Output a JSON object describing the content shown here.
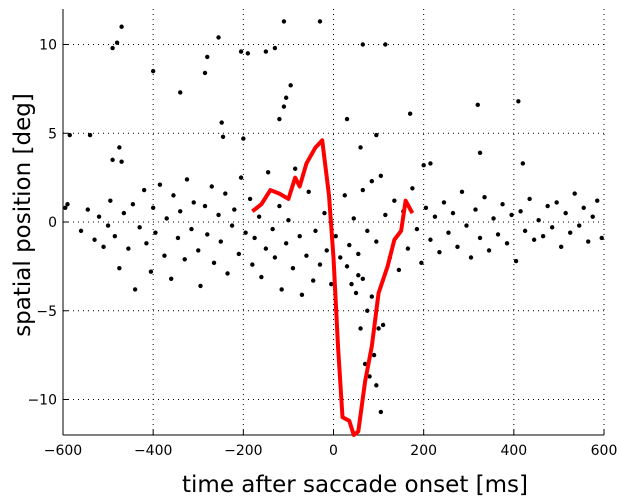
{
  "chart_data": {
    "type": "scatter",
    "xlabel": "time after saccade onset [ms]",
    "ylabel": "spatial position [deg]",
    "xlim": [
      -600,
      600
    ],
    "ylim": [
      -12,
      12
    ],
    "xticks": [
      {
        "value": -600,
        "label": "−600"
      },
      {
        "value": -400,
        "label": "−400"
      },
      {
        "value": -200,
        "label": "−200"
      },
      0,
      200,
      400,
      600
    ],
    "yticks": [
      {
        "value": -10,
        "label": "−10"
      },
      {
        "value": -5,
        "label": "−5"
      },
      0,
      5,
      10
    ],
    "grid": true,
    "scatter": {
      "color": "#000000",
      "x": [
        -470,
        -480,
        -490,
        -400,
        -340,
        -280,
        -285,
        -255,
        -205,
        -190,
        -150,
        -130,
        -110,
        -30,
        -105,
        -95,
        -110,
        -120,
        -248,
        -245,
        -200,
        -585,
        -540,
        -490,
        -475,
        -470,
        30,
        65,
        115,
        95,
        60,
        170,
        320,
        410,
        325,
        420,
        200,
        215,
        -590,
        -595,
        -560,
        -545,
        -530,
        -520,
        -510,
        -500,
        -495,
        -485,
        -475,
        -465,
        -455,
        -445,
        -440,
        -430,
        -420,
        -415,
        -405,
        -400,
        -395,
        -385,
        -375,
        -370,
        -360,
        -355,
        -345,
        -340,
        -330,
        -325,
        -315,
        -310,
        -300,
        -295,
        -285,
        -280,
        -270,
        -265,
        -255,
        -250,
        -240,
        -235,
        -225,
        -220,
        -210,
        -205,
        -195,
        -185,
        -180,
        -175,
        -165,
        -160,
        -150,
        -145,
        -135,
        -130,
        -120,
        -115,
        -105,
        -100,
        -90,
        -85,
        -75,
        -70,
        -60,
        -55,
        -45,
        -40,
        -30,
        -20,
        -15,
        -5,
        5,
        15,
        25,
        35,
        45,
        55,
        65,
        75,
        85,
        95,
        105,
        115,
        125,
        135,
        145,
        155,
        165,
        175,
        185,
        195,
        205,
        215,
        225,
        235,
        245,
        255,
        265,
        275,
        285,
        295,
        305,
        315,
        325,
        335,
        345,
        355,
        365,
        375,
        385,
        395,
        405,
        415,
        425,
        435,
        445,
        455,
        465,
        475,
        485,
        495,
        505,
        515,
        525,
        535,
        545,
        555,
        565,
        575,
        585,
        595,
        50,
        60,
        70,
        80,
        90,
        100,
        75,
        85,
        95,
        105,
        110,
        65,
        40,
        30,
        55
      ],
      "values": [
        11.0,
        10.1,
        9.8,
        8.5,
        7.3,
        9.3,
        8.4,
        10.4,
        9.6,
        9.5,
        9.6,
        9.8,
        11.3,
        11.3,
        7.0,
        7.7,
        6.5,
        5.8,
        5.6,
        4.8,
        4.7,
        4.9,
        4.9,
        3.5,
        4.2,
        3.4,
        5.8,
        10.0,
        10.0,
        4.9,
        4.2,
        6.1,
        6.6,
        6.8,
        3.9,
        3.3,
        3.2,
        3.3,
        1.0,
        0.8,
        -0.5,
        0.7,
        -1.0,
        0.3,
        -1.4,
        -0.2,
        1.2,
        -0.8,
        -2.6,
        0.5,
        -1.5,
        1.0,
        -3.8,
        -0.3,
        1.8,
        -1.2,
        -2.8,
        0.8,
        -0.6,
        2.1,
        -1.9,
        0.2,
        -3.2,
        1.5,
        -0.9,
        0.6,
        -2.1,
        2.4,
        -0.4,
        1.1,
        -1.6,
        -3.6,
        0.9,
        -0.7,
        2.0,
        -2.3,
        0.4,
        -1.1,
        1.6,
        -2.9,
        -0.2,
        0.7,
        -1.8,
        2.5,
        -0.6,
        1.3,
        -2.4,
        -0.9,
        0.3,
        -3.1,
        -1.5,
        2.8,
        -0.4,
        -2.0,
        0.9,
        -3.8,
        -1.2,
        0.1,
        -2.6,
        3.0,
        -0.8,
        -4.1,
        -1.9,
        1.7,
        -3.3,
        -0.5,
        -2.4,
        0.5,
        -1.6,
        -3.5,
        -0.8,
        -2.0,
        1.5,
        -1.3,
        0.2,
        -1.8,
        1.8,
        -0.5,
        2.3,
        -1.1,
        2.6,
        0.4,
        -2.0,
        1.2,
        -2.7,
        0.6,
        -1.5,
        1.9,
        -0.4,
        -2.3,
        0.8,
        -1.0,
        0.3,
        -1.7,
        1.1,
        -0.6,
        0.5,
        -1.4,
        1.7,
        -0.2,
        -2.0,
        0.7,
        -0.9,
        1.4,
        -1.6,
        0.2,
        -0.7,
        1.0,
        -1.2,
        0.4,
        -2.2,
        0.6,
        -0.5,
        1.3,
        -1.0,
        0.1,
        -0.8,
        0.9,
        -0.3,
        1.1,
        -1.4,
        0.5,
        -0.6,
        1.6,
        -0.2,
        0.8,
        -1.1,
        0.3,
        1.2,
        -0.9,
        -4.0,
        -6.0,
        -8.0,
        -8.7,
        -7.5,
        -6.0,
        -5.0,
        -4.2,
        -9.2,
        -10.7,
        -5.8,
        -3.2,
        -3.5,
        -2.5,
        -3.0
      ]
    },
    "line": {
      "color": "#ff0000",
      "x": [
        -180,
        -160,
        -140,
        -120,
        -100,
        -85,
        -75,
        -60,
        -40,
        -25,
        -10,
        0,
        10,
        20,
        35,
        45,
        55,
        70,
        85,
        100,
        120,
        135,
        150,
        160,
        175
      ],
      "values": [
        0.6,
        1.0,
        1.8,
        1.6,
        1.3,
        2.5,
        2.0,
        3.3,
        4.2,
        4.6,
        1.5,
        -2.0,
        -7.0,
        -11.0,
        -11.2,
        -12.0,
        -11.8,
        -9.0,
        -7.0,
        -4.0,
        -2.5,
        -1.0,
        -0.5,
        1.2,
        0.5
      ]
    }
  }
}
